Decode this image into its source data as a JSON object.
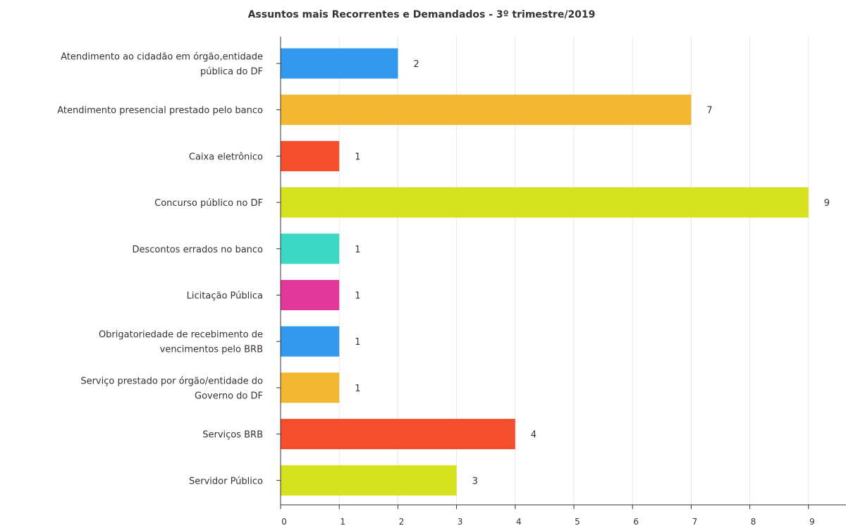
{
  "chart_data": {
    "type": "bar",
    "orientation": "horizontal",
    "title": "Assuntos mais Recorrentes e Demandados - 3º trimestre/2019",
    "xlabel": "",
    "ylabel": "",
    "xlim": [
      0,
      9.5
    ],
    "ticks": [
      "0",
      "1",
      "2",
      "3",
      "4",
      "5",
      "6",
      "7",
      "8",
      "9"
    ],
    "grid": true,
    "legend": "none",
    "categories": [
      [
        "Atendimento ao cidadão em órgão,entidade",
        "pública do DF"
      ],
      [
        "Atendimento presencial prestado pelo banco"
      ],
      [
        "Caixa eletrônico"
      ],
      [
        "Concurso público no DF"
      ],
      [
        "Descontos errados no banco"
      ],
      [
        "Licitação Pública"
      ],
      [
        "Obrigatoriedade de recebimento de",
        "vencimentos pelo BRB"
      ],
      [
        "Serviço prestado por órgão/entidade do",
        "Governo do DF"
      ],
      [
        "Serviços BRB"
      ],
      [
        "Servidor Público"
      ]
    ],
    "values": [
      2,
      7,
      1,
      9,
      1,
      1,
      1,
      1,
      4,
      3
    ],
    "colors": [
      "#3399ee",
      "#f2b632",
      "#f44e2c",
      "#d6e21e",
      "#3dd8c4",
      "#e0399a",
      "#3399ee",
      "#f2b632",
      "#f44e2c",
      "#d6e21e"
    ]
  }
}
